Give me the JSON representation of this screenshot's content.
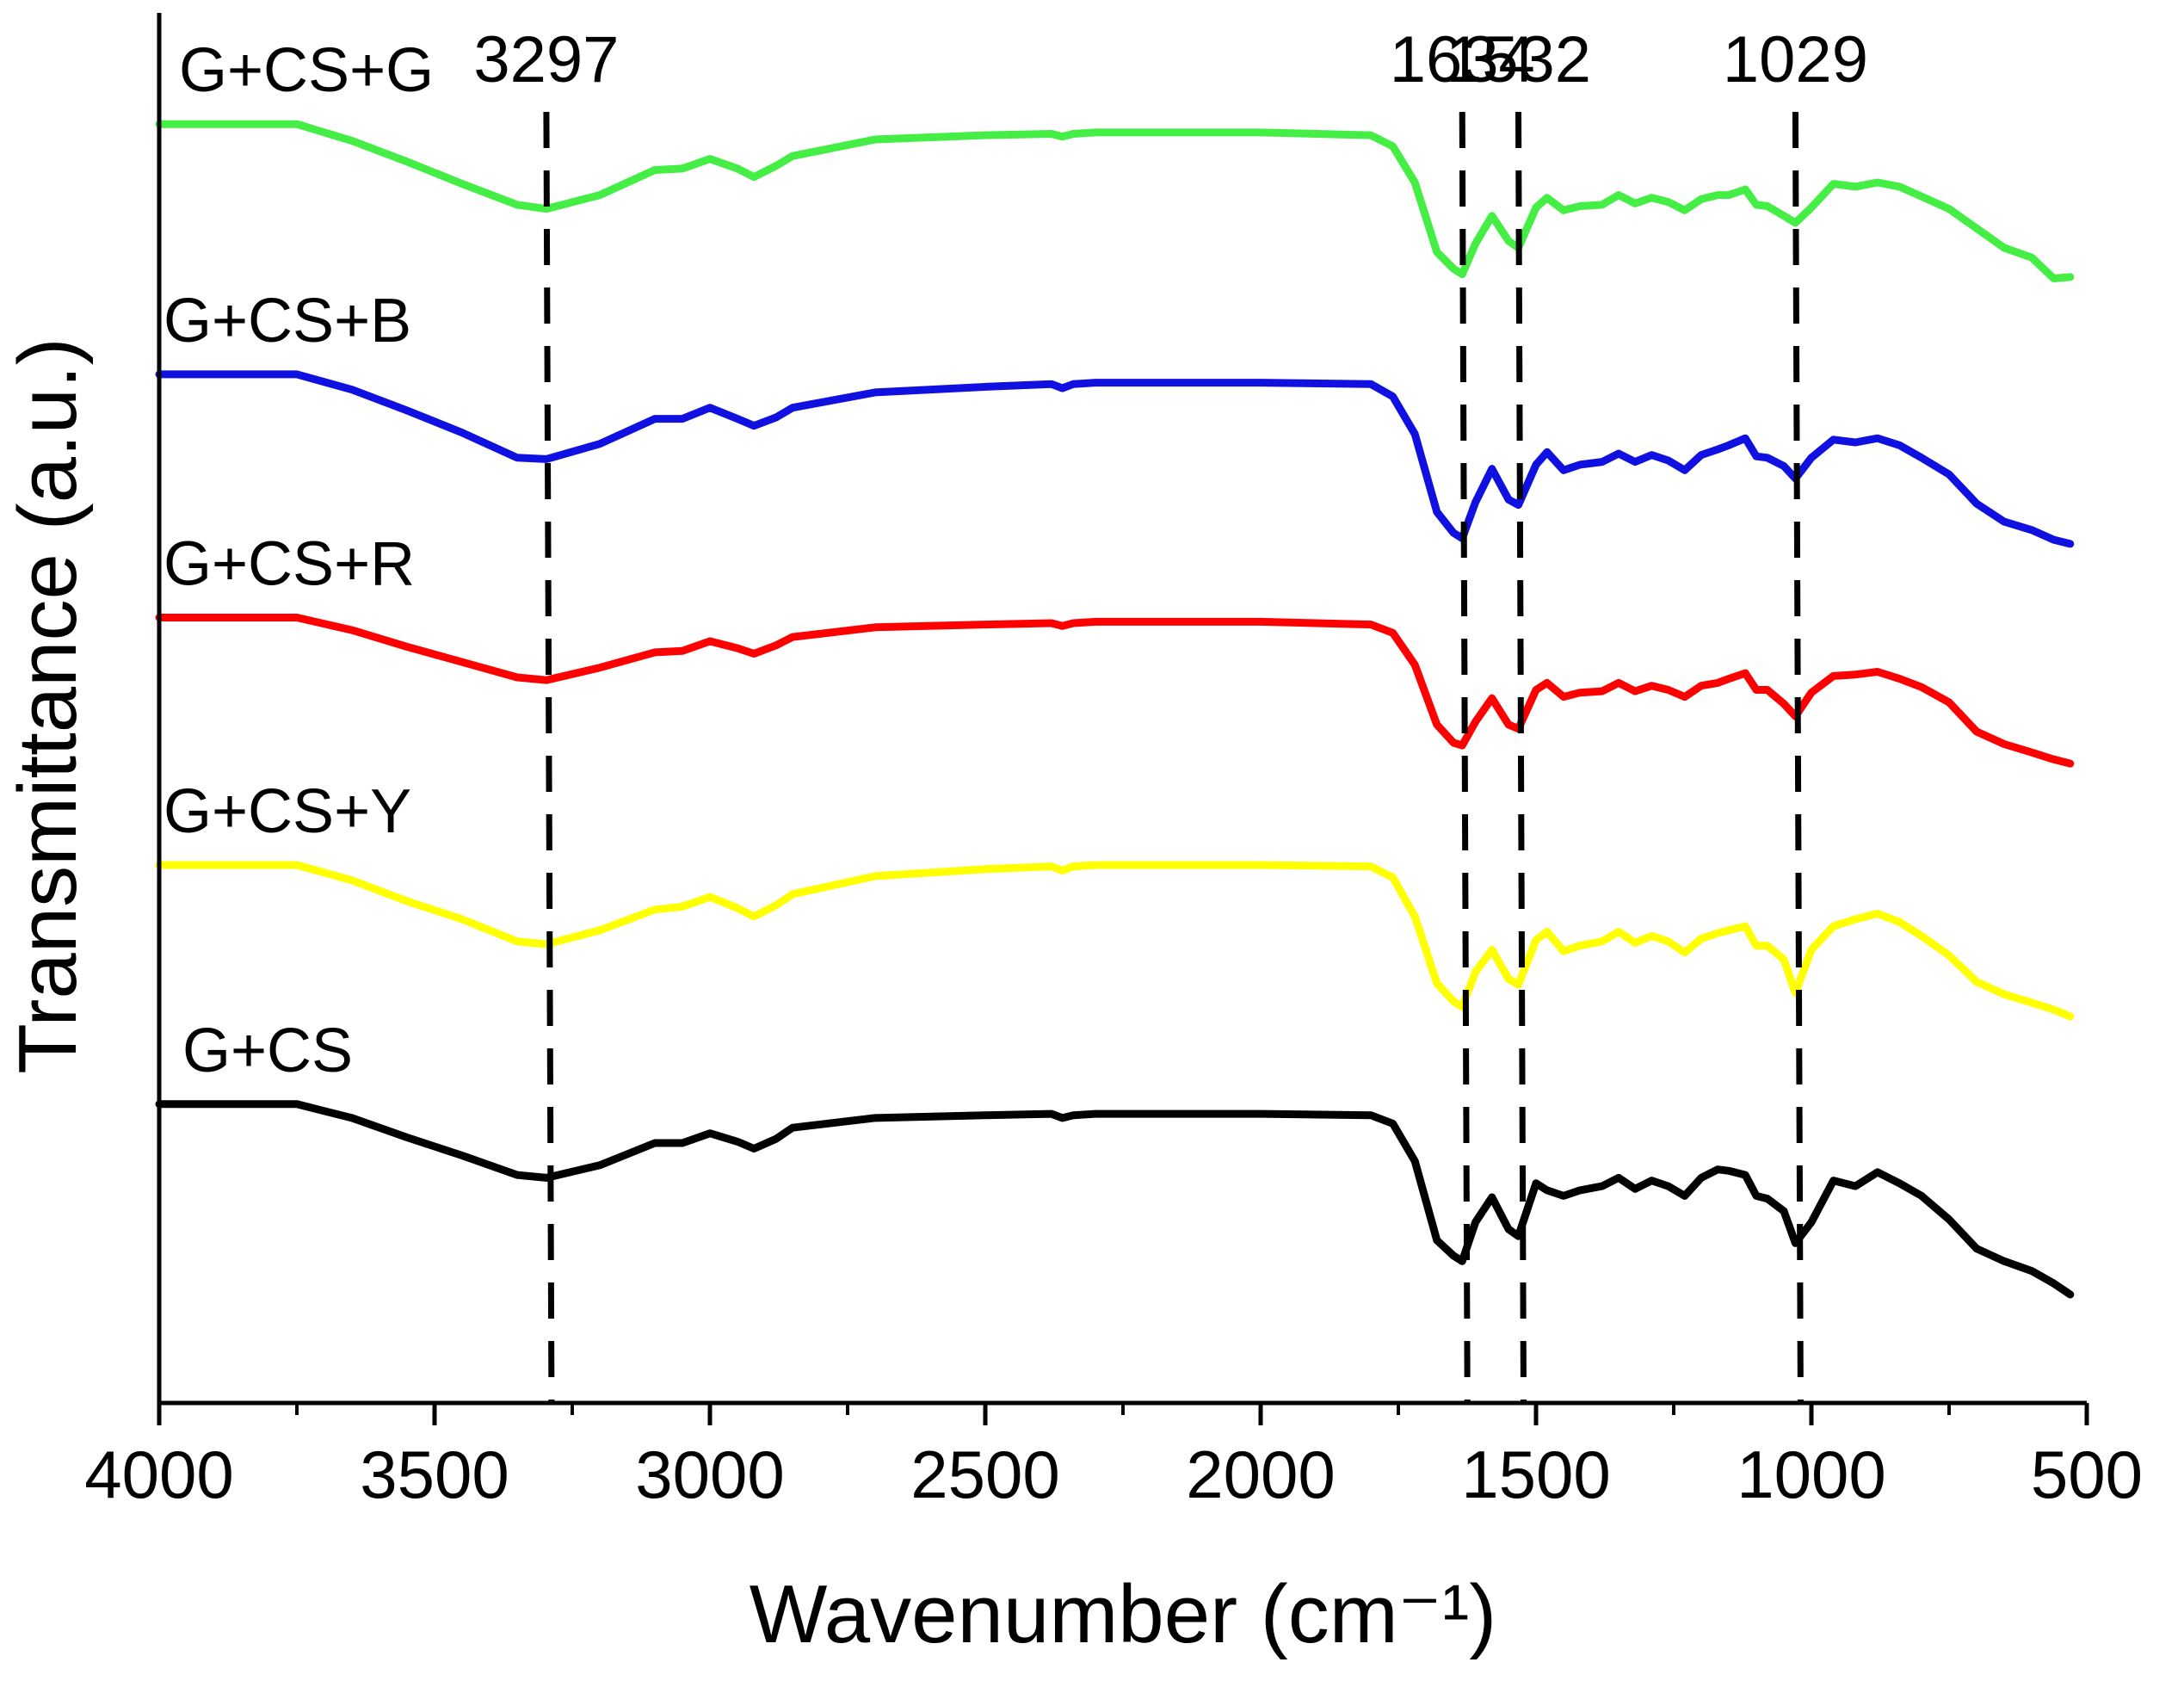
{
  "chart_data": {
    "type": "line",
    "title": "",
    "xlabel": "Wavenumber (cm⁻¹)",
    "ylabel": "Transmittance (a.u.)",
    "xlim": [
      4000,
      500
    ],
    "x_reversed": true,
    "x_ticks": [
      4000,
      3500,
      3000,
      2500,
      2000,
      1500,
      1000,
      500
    ],
    "x_tick_labels": [
      "4000",
      "3500",
      "3000",
      "2500",
      "2000",
      "1500",
      "1000",
      "500"
    ],
    "x_minor_step": 250,
    "yticks_visible": false,
    "ylim": [
      0,
      100
    ],
    "x": [
      4000,
      3750,
      3650,
      3550,
      3450,
      3350,
      3297,
      3200,
      3100,
      3050,
      3000,
      2950,
      2920,
      2880,
      2850,
      2700,
      2500,
      2380,
      2360,
      2340,
      2300,
      2000,
      1800,
      1760,
      1720,
      1680,
      1650,
      1634,
      1610,
      1580,
      1550,
      1532,
      1500,
      1480,
      1450,
      1420,
      1380,
      1350,
      1320,
      1290,
      1260,
      1230,
      1200,
      1170,
      1150,
      1120,
      1100,
      1080,
      1050,
      1029,
      1000,
      960,
      920,
      880,
      840,
      800,
      750,
      700,
      650,
      600,
      560,
      530
    ],
    "series": [
      {
        "name": "G+CS+G",
        "color": "#44ee44",
        "values": [
          92.0,
          92.0,
          90.8,
          89.3,
          87.7,
          86.2,
          85.9,
          86.9,
          88.7,
          88.8,
          89.5,
          88.8,
          88.2,
          89.0,
          89.7,
          90.9,
          91.2,
          91.3,
          91.1,
          91.3,
          91.4,
          91.4,
          91.2,
          90.4,
          87.8,
          82.8,
          81.6,
          81.2,
          83.4,
          85.4,
          83.6,
          83.1,
          86.0,
          86.7,
          85.8,
          86.1,
          86.2,
          86.9,
          86.3,
          86.7,
          86.4,
          85.8,
          86.6,
          86.9,
          86.9,
          87.3,
          86.2,
          86.1,
          85.4,
          84.9,
          86.0,
          87.7,
          87.5,
          87.8,
          87.5,
          86.8,
          85.9,
          84.5,
          83.1,
          82.4,
          80.9,
          81.0
        ]
      },
      {
        "name": "G+CS+B",
        "color": "#1010e0",
        "values": [
          74.0,
          74.0,
          72.9,
          71.4,
          69.8,
          68.0,
          67.9,
          69.0,
          70.8,
          70.8,
          71.6,
          70.8,
          70.3,
          70.9,
          71.6,
          72.7,
          73.1,
          73.3,
          73.0,
          73.3,
          73.4,
          73.4,
          73.3,
          72.4,
          69.7,
          64.1,
          62.6,
          62.2,
          64.8,
          67.2,
          65.0,
          64.6,
          67.5,
          68.4,
          67.1,
          67.5,
          67.7,
          68.3,
          67.7,
          68.2,
          67.8,
          67.1,
          68.2,
          68.6,
          68.9,
          69.4,
          68.1,
          68.0,
          67.4,
          66.5,
          68.0,
          69.3,
          69.1,
          69.4,
          68.9,
          68.0,
          66.8,
          64.7,
          63.4,
          62.8,
          62.1,
          61.8
        ]
      },
      {
        "name": "G+CS+R",
        "color": "#ff0000",
        "values": [
          56.5,
          56.5,
          55.6,
          54.4,
          53.3,
          52.2,
          52.0,
          52.9,
          54.0,
          54.1,
          54.8,
          54.3,
          53.9,
          54.5,
          55.1,
          55.8,
          56.0,
          56.1,
          55.9,
          56.1,
          56.2,
          56.2,
          56.0,
          55.4,
          53.1,
          48.8,
          47.5,
          47.3,
          49.0,
          50.7,
          48.8,
          48.5,
          51.3,
          51.8,
          50.8,
          51.1,
          51.2,
          51.8,
          51.2,
          51.6,
          51.3,
          50.8,
          51.6,
          51.8,
          52.1,
          52.5,
          51.3,
          51.3,
          50.3,
          49.4,
          51.1,
          52.3,
          52.4,
          52.6,
          52.1,
          51.5,
          50.4,
          48.3,
          47.4,
          46.8,
          46.3,
          46.0
        ]
      },
      {
        "name": "G+CS+Y",
        "color": "#ffff00",
        "values": [
          38.7,
          38.7,
          37.6,
          36.1,
          34.8,
          33.2,
          33.0,
          34.0,
          35.5,
          35.7,
          36.4,
          35.6,
          35.0,
          35.8,
          36.6,
          37.9,
          38.4,
          38.6,
          38.3,
          38.6,
          38.7,
          38.7,
          38.6,
          37.8,
          35.0,
          30.2,
          28.9,
          28.5,
          31.0,
          32.6,
          30.5,
          30.1,
          33.3,
          33.9,
          32.5,
          32.9,
          33.2,
          33.9,
          33.1,
          33.6,
          33.2,
          32.4,
          33.4,
          33.8,
          34.0,
          34.3,
          32.9,
          32.9,
          31.9,
          29.5,
          32.6,
          34.3,
          34.8,
          35.2,
          34.6,
          33.6,
          32.2,
          30.3,
          29.4,
          28.8,
          28.3,
          27.8
        ]
      },
      {
        "name": "G+CS",
        "color": "#000000",
        "values": [
          21.5,
          21.5,
          20.5,
          19.1,
          17.8,
          16.4,
          16.2,
          17.1,
          18.7,
          18.7,
          19.4,
          18.8,
          18.3,
          19.0,
          19.8,
          20.5,
          20.7,
          20.8,
          20.5,
          20.7,
          20.8,
          20.8,
          20.7,
          20.1,
          17.4,
          11.7,
          10.6,
          10.2,
          13.0,
          14.8,
          12.5,
          12.0,
          15.8,
          15.3,
          14.9,
          15.3,
          15.6,
          16.2,
          15.4,
          16.0,
          15.6,
          14.9,
          16.2,
          16.8,
          16.7,
          16.4,
          14.9,
          14.7,
          13.8,
          11.5,
          13.0,
          16.0,
          15.6,
          16.6,
          15.8,
          14.9,
          13.2,
          11.1,
          10.2,
          9.5,
          8.6,
          7.8
        ]
      }
    ],
    "annotations": [
      {
        "type": "peak",
        "x": 3297,
        "label": "3297"
      },
      {
        "type": "peak",
        "x": 1634,
        "label": "1634"
      },
      {
        "type": "peak",
        "x": 1532,
        "label": "1532"
      },
      {
        "type": "peak",
        "x": 1029,
        "label": "1029"
      }
    ]
  }
}
